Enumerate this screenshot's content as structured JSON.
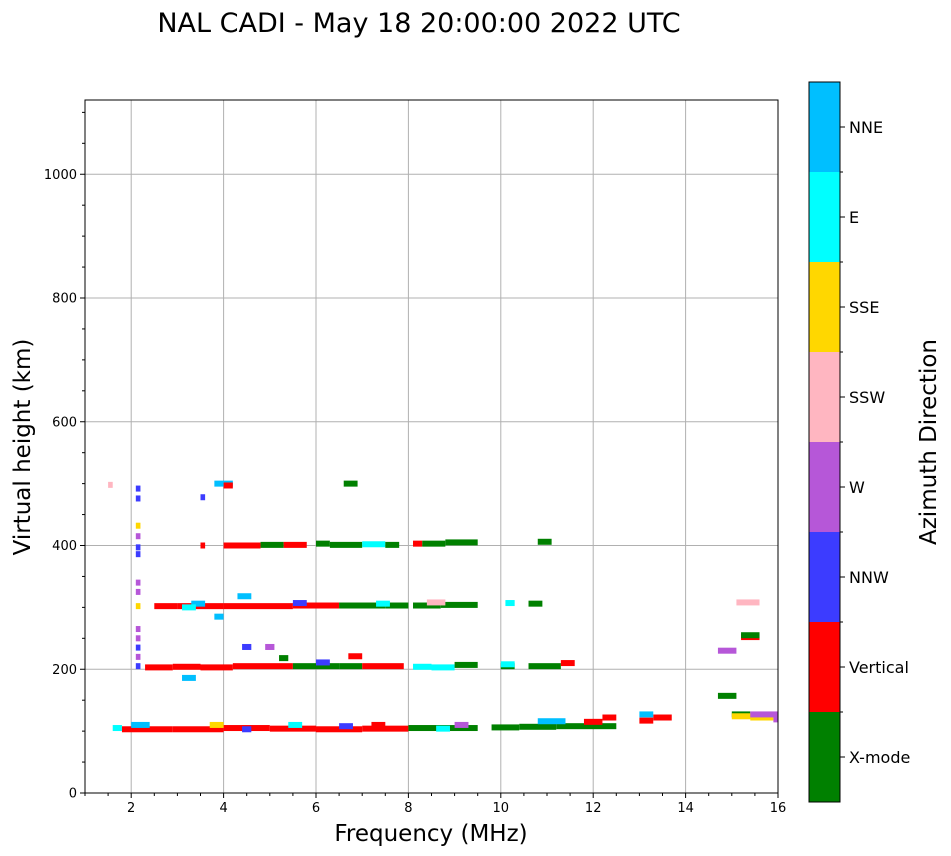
{
  "chart_data": {
    "type": "scatter",
    "title": "NAL CADI - May 18 20:00:00 2022 UTC",
    "xlabel": "Frequency (MHz)",
    "ylabel": "Virtual height (km)",
    "xlim": [
      1,
      16
    ],
    "ylim": [
      0,
      1120
    ],
    "xticks": [
      2,
      4,
      6,
      8,
      10,
      12,
      14,
      16
    ],
    "yticks": [
      0,
      200,
      400,
      600,
      800,
      1000
    ],
    "grid": true,
    "colorbar": {
      "title": "Azimuth Direction",
      "categories": [
        {
          "name": "X-mode",
          "color": "#008000"
        },
        {
          "name": "Vertical",
          "color": "#ff0000"
        },
        {
          "name": "NNW",
          "color": "#3c3cff"
        },
        {
          "name": "W",
          "color": "#b657d8"
        },
        {
          "name": "SSW",
          "color": "#ffb6c1"
        },
        {
          "name": "SSE",
          "color": "#ffd700"
        },
        {
          "name": "E",
          "color": "#00ffff"
        },
        {
          "name": "NNE",
          "color": "#00bfff"
        }
      ]
    },
    "segments_note": "each segment: [freq_start_MHz, freq_end_MHz, height_km, category_index]",
    "segments": [
      [
        1.8,
        2.9,
        103,
        1
      ],
      [
        2.9,
        4.0,
        103,
        1
      ],
      [
        4.0,
        5.0,
        105,
        1
      ],
      [
        5.0,
        6.0,
        104,
        1
      ],
      [
        6.0,
        7.0,
        103,
        1
      ],
      [
        7.0,
        8.0,
        104,
        1
      ],
      [
        8.0,
        9.5,
        105,
        0
      ],
      [
        9.8,
        10.4,
        106,
        0
      ],
      [
        10.4,
        11.2,
        107,
        0
      ],
      [
        11.2,
        12.5,
        108,
        0
      ],
      [
        11.8,
        12.2,
        115,
        1
      ],
      [
        12.2,
        12.5,
        122,
        1
      ],
      [
        13.0,
        13.3,
        117,
        1
      ],
      [
        13.3,
        13.7,
        122,
        1
      ],
      [
        13.0,
        13.3,
        127,
        7
      ],
      [
        10.8,
        11.4,
        116,
        7
      ],
      [
        1.6,
        1.8,
        105,
        6
      ],
      [
        2.0,
        2.4,
        110,
        7
      ],
      [
        3.7,
        4.0,
        110,
        5
      ],
      [
        4.4,
        4.6,
        103,
        2
      ],
      [
        5.4,
        5.7,
        110,
        6
      ],
      [
        6.5,
        6.8,
        108,
        2
      ],
      [
        8.6,
        8.9,
        104,
        6
      ],
      [
        9.0,
        9.3,
        110,
        3
      ],
      [
        7.2,
        7.5,
        110,
        1
      ],
      [
        14.7,
        15.1,
        157,
        0
      ],
      [
        15.0,
        15.4,
        127,
        0
      ],
      [
        15.0,
        15.5,
        124,
        5
      ],
      [
        15.4,
        15.9,
        122,
        5
      ],
      [
        15.4,
        16.0,
        127,
        3
      ],
      [
        15.9,
        16.0,
        119,
        3
      ],
      [
        2.3,
        2.9,
        203,
        1
      ],
      [
        2.9,
        3.5,
        204,
        1
      ],
      [
        3.5,
        4.2,
        203,
        1
      ],
      [
        4.2,
        5.5,
        205,
        1
      ],
      [
        5.5,
        6.5,
        205,
        0
      ],
      [
        6.5,
        7.0,
        205,
        0
      ],
      [
        7.0,
        7.9,
        205,
        1
      ],
      [
        8.1,
        8.5,
        204,
        6
      ],
      [
        8.5,
        9.0,
        203,
        6
      ],
      [
        9.0,
        9.5,
        207,
        0
      ],
      [
        10.0,
        10.3,
        205,
        0
      ],
      [
        10.0,
        10.3,
        208,
        6
      ],
      [
        10.6,
        11.3,
        205,
        0
      ],
      [
        11.3,
        11.6,
        210,
        1
      ],
      [
        3.1,
        3.4,
        186,
        7
      ],
      [
        4.4,
        4.6,
        236,
        2
      ],
      [
        4.9,
        5.1,
        236,
        3
      ],
      [
        5.2,
        5.4,
        218,
        0
      ],
      [
        6.0,
        6.3,
        211,
        2
      ],
      [
        6.7,
        7.0,
        221,
        1
      ],
      [
        14.7,
        15.1,
        230,
        3
      ],
      [
        15.2,
        15.6,
        252,
        1
      ],
      [
        15.2,
        15.6,
        255,
        0
      ],
      [
        15.1,
        15.6,
        308,
        4
      ],
      [
        2.5,
        3.0,
        302,
        1
      ],
      [
        3.0,
        4.0,
        302,
        1
      ],
      [
        4.0,
        5.5,
        302,
        1
      ],
      [
        5.5,
        6.5,
        303,
        1
      ],
      [
        6.5,
        7.5,
        303,
        0
      ],
      [
        7.5,
        8.0,
        303,
        0
      ],
      [
        8.1,
        8.7,
        303,
        0
      ],
      [
        8.7,
        9.5,
        304,
        0
      ],
      [
        10.1,
        10.3,
        307,
        6
      ],
      [
        10.6,
        10.9,
        306,
        0
      ],
      [
        3.3,
        3.6,
        306,
        7
      ],
      [
        4.3,
        4.6,
        318,
        7
      ],
      [
        3.8,
        4.0,
        285,
        7
      ],
      [
        5.5,
        5.8,
        307,
        2
      ],
      [
        7.3,
        7.6,
        306,
        6
      ],
      [
        8.4,
        8.8,
        308,
        4
      ],
      [
        3.1,
        3.4,
        300,
        6
      ],
      [
        3.5,
        3.6,
        400,
        1
      ],
      [
        4.0,
        4.8,
        400,
        1
      ],
      [
        4.8,
        5.3,
        401,
        0
      ],
      [
        5.3,
        5.8,
        401,
        1
      ],
      [
        6.0,
        6.3,
        403,
        0
      ],
      [
        6.3,
        7.0,
        401,
        0
      ],
      [
        7.0,
        7.5,
        402,
        6
      ],
      [
        7.5,
        7.8,
        401,
        0
      ],
      [
        8.1,
        8.3,
        403,
        1
      ],
      [
        8.3,
        8.8,
        403,
        0
      ],
      [
        8.8,
        9.5,
        405,
        0
      ],
      [
        10.8,
        11.1,
        406,
        0
      ],
      [
        3.8,
        4.2,
        500,
        7
      ],
      [
        4.0,
        4.2,
        497,
        1
      ],
      [
        6.6,
        6.9,
        500,
        0
      ],
      [
        3.5,
        3.6,
        478,
        2
      ],
      [
        1.5,
        1.6,
        498,
        4
      ],
      [
        2.1,
        2.2,
        492,
        2
      ],
      [
        2.1,
        2.2,
        476,
        2
      ],
      [
        2.1,
        2.2,
        432,
        5
      ],
      [
        2.1,
        2.2,
        415,
        3
      ],
      [
        2.1,
        2.2,
        397,
        2
      ],
      [
        2.1,
        2.2,
        386,
        2
      ],
      [
        2.1,
        2.2,
        340,
        3
      ],
      [
        2.1,
        2.2,
        325,
        3
      ],
      [
        2.1,
        2.2,
        302,
        5
      ],
      [
        2.1,
        2.2,
        265,
        3
      ],
      [
        2.1,
        2.2,
        250,
        3
      ],
      [
        2.1,
        2.2,
        235,
        2
      ],
      [
        2.1,
        2.2,
        220,
        3
      ],
      [
        2.1,
        2.2,
        205,
        2
      ]
    ]
  }
}
